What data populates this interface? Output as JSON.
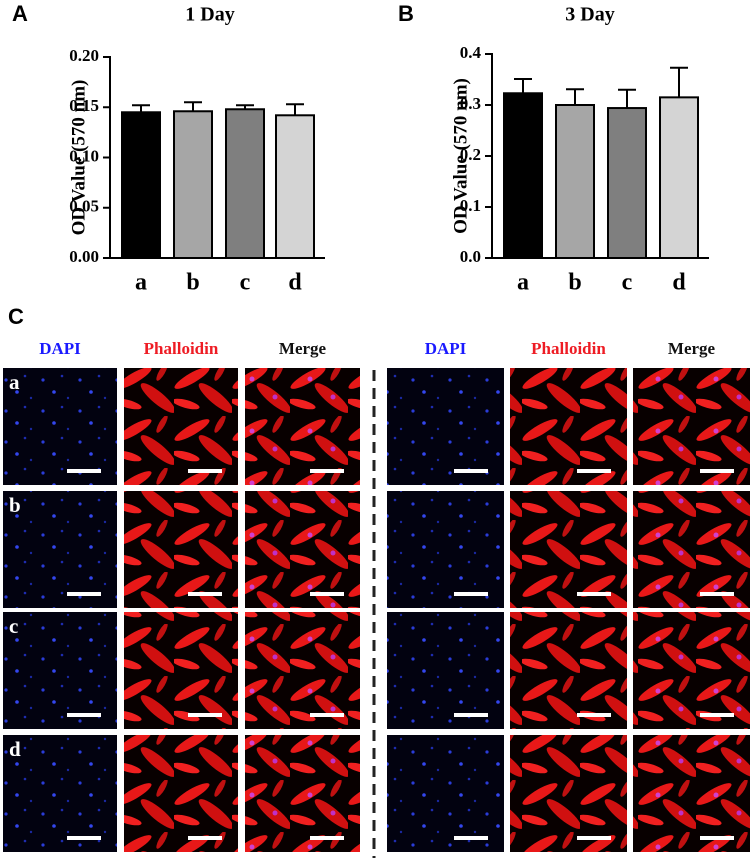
{
  "chart_data": [
    {
      "type": "bar",
      "label": "A",
      "title": "1 Day",
      "ylabel": "OD Value (570 nm)",
      "categories": [
        "a",
        "b",
        "c",
        "d"
      ],
      "values": [
        0.145,
        0.146,
        0.148,
        0.142
      ],
      "errors": [
        0.007,
        0.009,
        0.004,
        0.011
      ],
      "colors": [
        "#000000",
        "#a6a6a6",
        "#7f7f7f",
        "#d4d4d4"
      ],
      "ylim": [
        0,
        0.2
      ],
      "yticks": [
        {
          "value": 0,
          "label": "0.00"
        },
        {
          "value": 0.05,
          "label": "0.05"
        },
        {
          "value": 0.1,
          "label": "0.10"
        },
        {
          "value": 0.15,
          "label": "0.15"
        },
        {
          "value": 0.2,
          "label": "0.20"
        }
      ]
    },
    {
      "type": "bar",
      "label": "B",
      "title": "3 Day",
      "ylabel": "OD Value (570 nm)",
      "categories": [
        "a",
        "b",
        "c",
        "d"
      ],
      "values": [
        0.323,
        0.3,
        0.294,
        0.315
      ],
      "errors": [
        0.028,
        0.031,
        0.036,
        0.058
      ],
      "colors": [
        "#000000",
        "#a6a6a6",
        "#7f7f7f",
        "#d4d4d4"
      ],
      "ylim": [
        0,
        0.4
      ],
      "yticks": [
        {
          "value": 0,
          "label": "0.0"
        },
        {
          "value": 0.1,
          "label": "0.1"
        },
        {
          "value": 0.2,
          "label": "0.2"
        },
        {
          "value": 0.3,
          "label": "0.3"
        },
        {
          "value": 0.4,
          "label": "0.4"
        }
      ]
    }
  ],
  "panel_c": {
    "label": "C",
    "groups": [
      {
        "columns": [
          "DAPI",
          "Phalloidin",
          "Merge"
        ]
      },
      {
        "columns": [
          "DAPI",
          "Phalloidin",
          "Merge"
        ]
      }
    ],
    "rows": [
      "a",
      "b",
      "c",
      "d"
    ]
  }
}
